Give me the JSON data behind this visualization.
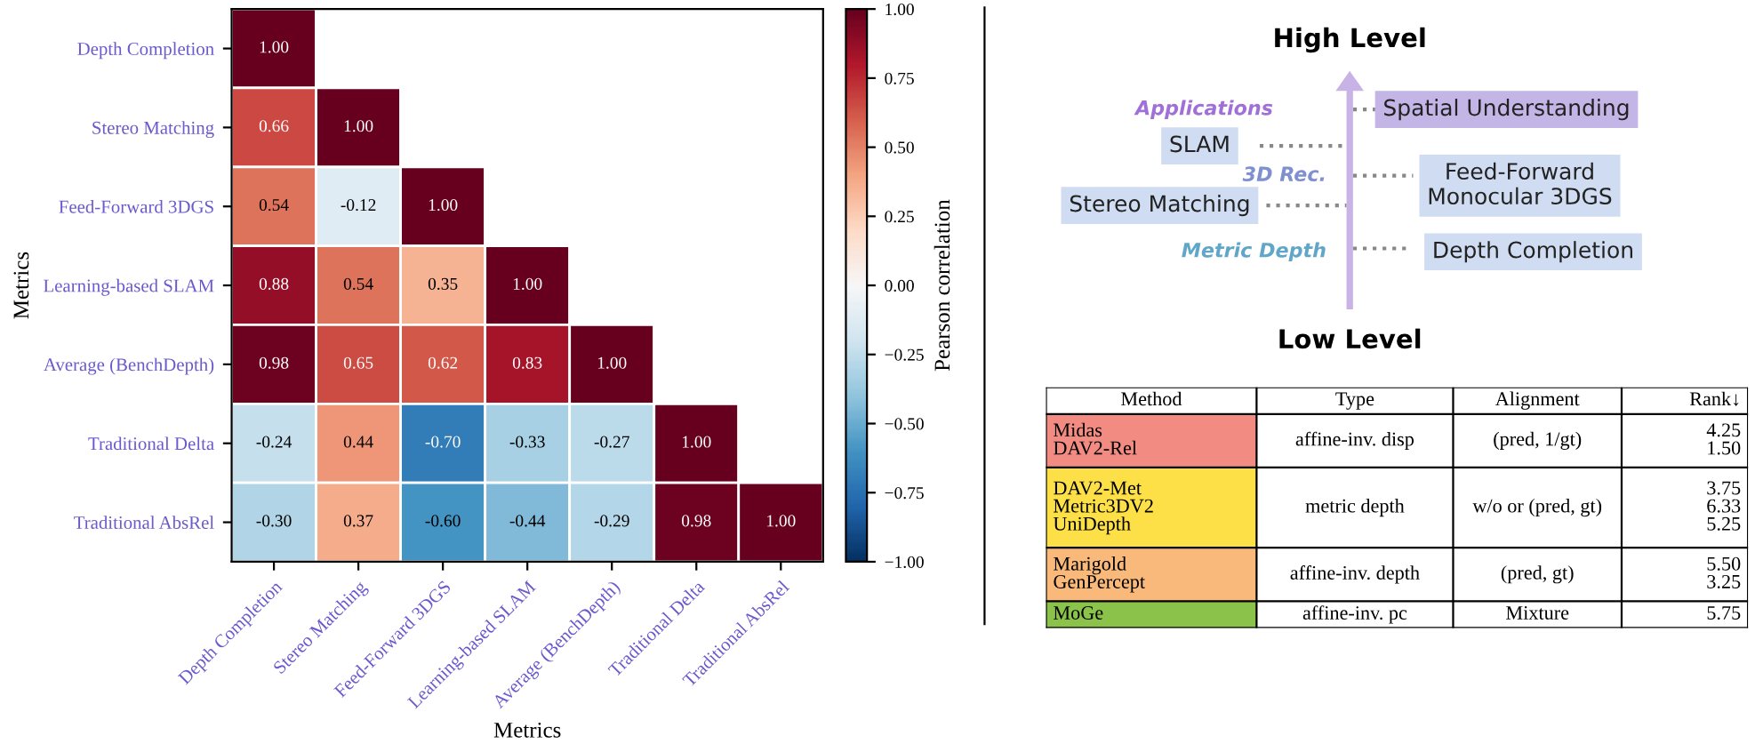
{
  "chart_data": [
    {
      "type": "heatmap",
      "xlabel": "Metrics",
      "ylabel": "Metrics",
      "clabel": "Pearson correlation",
      "categories": [
        "Depth Completion",
        "Stereo Matching",
        "Feed-Forward 3DGS",
        "Learning-based SLAM",
        "Average (BenchDepth)",
        "Traditional Delta",
        "Traditional AbsRel"
      ],
      "y_categories": [
        "Depth Completion",
        "Stereo Matching",
        "Feed-Forward 3DGS",
        "Learning-based SLAM",
        "Average (BenchDepth)",
        "Traditional Delta",
        "Traditional AbsRel"
      ],
      "cells": [
        [
          1.0,
          null,
          null,
          null,
          null,
          null,
          null
        ],
        [
          0.66,
          1.0,
          null,
          null,
          null,
          null,
          null
        ],
        [
          0.54,
          -0.12,
          1.0,
          null,
          null,
          null,
          null
        ],
        [
          0.88,
          0.54,
          0.35,
          1.0,
          null,
          null,
          null
        ],
        [
          0.98,
          0.65,
          0.62,
          0.83,
          1.0,
          null,
          null
        ],
        [
          -0.24,
          0.44,
          -0.7,
          -0.33,
          -0.27,
          1.0,
          null
        ],
        [
          -0.3,
          0.37,
          -0.6,
          -0.44,
          -0.29,
          0.98,
          1.0
        ]
      ],
      "cell_labels": [
        [
          "1.00",
          null,
          null,
          null,
          null,
          null,
          null
        ],
        [
          "0.66",
          "1.00",
          null,
          null,
          null,
          null,
          null
        ],
        [
          "0.54",
          "-0.12",
          "1.00",
          null,
          null,
          null,
          null
        ],
        [
          "0.88",
          "0.54",
          "0.35",
          "1.00",
          null,
          null,
          null
        ],
        [
          "0.98",
          "0.65",
          "0.62",
          "0.83",
          "1.00",
          null,
          null
        ],
        [
          "-0.24",
          "0.44",
          "-0.70",
          "-0.33",
          "-0.27",
          "1.00",
          null
        ],
        [
          "-0.30",
          "0.37",
          "-0.60",
          "-0.44",
          "-0.29",
          "0.98",
          "1.00"
        ]
      ],
      "clim": [
        -1.0,
        1.0
      ],
      "cticks": [
        {
          "value": -1.0,
          "label": "−1.00"
        },
        {
          "value": -0.75,
          "label": "−0.75"
        },
        {
          "value": -0.5,
          "label": "−0.50"
        },
        {
          "value": -0.25,
          "label": "−0.25"
        },
        {
          "value": 0,
          "label": "0.00"
        },
        {
          "value": 0.25,
          "label": "0.25"
        },
        {
          "value": 0.5,
          "label": "0.50"
        },
        {
          "value": 0.75,
          "label": "0.75"
        },
        {
          "value": 1.0,
          "label": "1.00"
        }
      ]
    },
    {
      "type": "other",
      "title": "High Level",
      "annotations": [
        "Low Level",
        "Applications",
        "3D Rec.",
        "Metric Depth",
        "Spatial Understanding",
        "SLAM",
        "Feed-Forward\nMonocular 3DGS",
        "Stereo Matching",
        "Depth Completion"
      ]
    },
    {
      "type": "other",
      "annotations": [
        "Method",
        "Type",
        "Alignment",
        "Rank↓",
        "Midas\nDAV2-Rel",
        "affine-inv. disp",
        "(pred, 1/gt)",
        "4.25\n1.50",
        "DAV2-Met\nMetric3DV2\nUniDepth",
        "metric depth",
        "w/o or (pred, gt)",
        "3.75\n6.33\n5.25",
        "Marigold\nGenPercept",
        "affine-inv. depth",
        "(pred, gt)",
        "5.50\n3.25",
        "MoGe",
        "affine-inv. pc",
        "Mixture",
        "5.75"
      ]
    }
  ]
}
